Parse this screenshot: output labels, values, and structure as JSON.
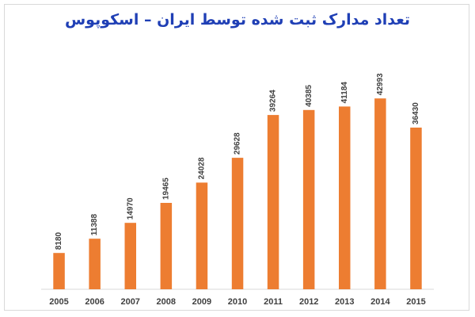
{
  "chart_data": {
    "type": "bar",
    "title": "تعداد مدارک ثبت شده توسط ایران – اسکوپوس",
    "categories": [
      "2005",
      "2006",
      "2007",
      "2008",
      "2009",
      "2010",
      "2011",
      "2012",
      "2013",
      "2014",
      "2015"
    ],
    "values": [
      8180,
      11388,
      14970,
      19465,
      24028,
      29628,
      39264,
      40385,
      41184,
      42993,
      36430
    ],
    "value_labels": [
      "8180",
      "11388",
      "14970",
      "19465",
      "24028",
      "29628",
      "39264",
      "40385",
      "41184",
      "42993",
      "36430"
    ],
    "xlabel": "",
    "ylabel": "",
    "ylim": [
      0,
      50000
    ],
    "grid": false,
    "legend": "none",
    "bar_color": "#ed7d31",
    "axis_color": "#d9d9d9",
    "title_color": "#1f3fb5"
  }
}
